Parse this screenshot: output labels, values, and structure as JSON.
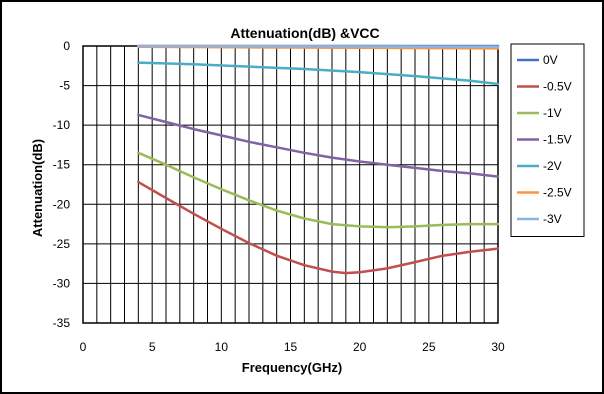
{
  "chart_data": {
    "type": "line",
    "title": "Attenuation(dB) &VCC",
    "xlabel": "Frequency(GHz)",
    "ylabel": "Attenuation(dB)",
    "xlim": [
      0,
      30
    ],
    "ylim": [
      -35,
      0
    ],
    "x_ticks": [
      "0",
      "5",
      "10",
      "15",
      "20",
      "25",
      "30"
    ],
    "y_ticks": [
      "0",
      "-5",
      "-10",
      "-15",
      "-20",
      "-25",
      "-30",
      "-35"
    ],
    "grid": true,
    "legend_position": "right",
    "series": [
      {
        "name": "0V",
        "color": "#4472C4",
        "x": [
          4,
          30
        ],
        "y": [
          0,
          0
        ]
      },
      {
        "name": "-0.5V",
        "color": "#C0504D",
        "x": [
          4,
          6,
          8,
          10,
          12,
          14,
          16,
          18,
          19,
          20,
          22,
          24,
          26,
          28,
          30
        ],
        "y": [
          -17.2,
          -19.2,
          -21.2,
          -23.1,
          -24.9,
          -26.5,
          -27.7,
          -28.5,
          -28.7,
          -28.6,
          -28.1,
          -27.3,
          -26.5,
          -26.0,
          -25.6
        ]
      },
      {
        "name": "-1V",
        "color": "#9BBB59",
        "x": [
          4,
          6,
          8,
          10,
          12,
          14,
          16,
          18,
          20,
          22,
          24,
          26,
          28,
          30
        ],
        "y": [
          -13.5,
          -15.0,
          -16.6,
          -18.1,
          -19.5,
          -20.8,
          -21.8,
          -22.5,
          -22.8,
          -22.9,
          -22.8,
          -22.6,
          -22.5,
          -22.5
        ]
      },
      {
        "name": "-1.5V",
        "color": "#8064A2",
        "x": [
          4,
          6,
          8,
          10,
          12,
          14,
          16,
          18,
          20,
          22,
          24,
          26,
          28,
          30
        ],
        "y": [
          -8.7,
          -9.6,
          -10.5,
          -11.3,
          -12.1,
          -12.8,
          -13.5,
          -14.1,
          -14.6,
          -15.0,
          -15.4,
          -15.8,
          -16.1,
          -16.5
        ]
      },
      {
        "name": "-2V",
        "color": "#4BACC6",
        "x": [
          4,
          8,
          12,
          16,
          20,
          24,
          28,
          30
        ],
        "y": [
          -2.1,
          -2.3,
          -2.6,
          -2.9,
          -3.3,
          -3.8,
          -4.4,
          -4.8
        ]
      },
      {
        "name": "-2.5V",
        "color": "#F79646",
        "x": [
          4,
          30
        ],
        "y": [
          -0.1,
          -0.3
        ]
      },
      {
        "name": "-3V",
        "color": "#8EB4E3",
        "x": [
          4,
          30
        ],
        "y": [
          0,
          -0.1
        ]
      }
    ]
  }
}
